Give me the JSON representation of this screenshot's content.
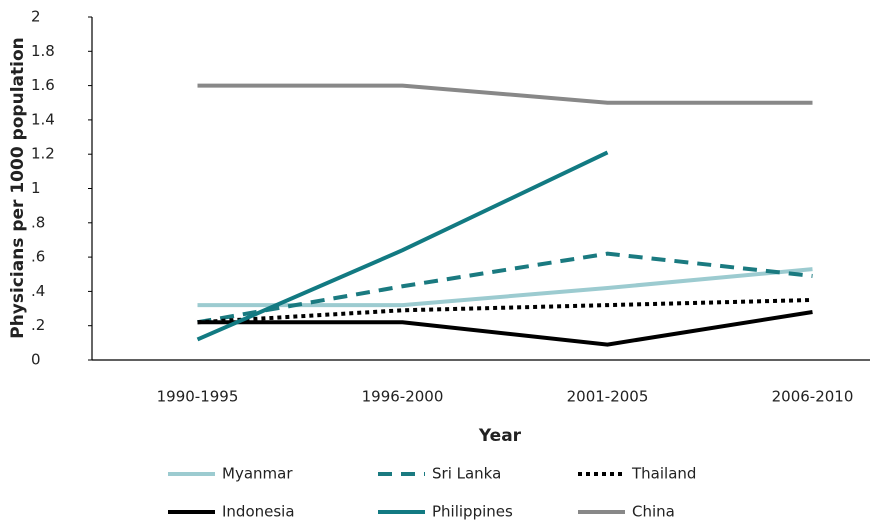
{
  "chart_data": {
    "type": "line",
    "y_label": "Physicians per 1000 population",
    "x_label": "Year",
    "categories": [
      "1990-1995",
      "1996-2000",
      "2001-2005",
      "2006-2010"
    ],
    "series": [
      {
        "name": "Myanmar",
        "color": "#9ccbd0",
        "dash": "solid",
        "values": [
          0.32,
          0.32,
          0.42,
          0.53
        ]
      },
      {
        "name": "Sri Lanka",
        "color": "#1a7a80",
        "dash": "dashed",
        "values": [
          0.22,
          0.43,
          0.62,
          0.49
        ]
      },
      {
        "name": "Thailand",
        "color": "#000000",
        "dash": "dotted",
        "values": [
          0.22,
          0.29,
          0.32,
          0.35
        ]
      },
      {
        "name": "Indonesia",
        "color": "#000000",
        "dash": "solid",
        "values": [
          0.22,
          0.22,
          0.09,
          0.28
        ]
      },
      {
        "name": "Philippines",
        "color": "#127a82",
        "dash": "solid",
        "values": [
          0.12,
          0.64,
          1.21,
          null
        ]
      },
      {
        "name": "China",
        "color": "#888888",
        "dash": "solid",
        "values": [
          1.6,
          1.6,
          1.5,
          1.5
        ]
      }
    ],
    "ylim": [
      0,
      2
    ],
    "yticks": [
      0,
      {
        "value": 0.2,
        "label": ".2"
      },
      {
        "value": 0.4,
        "label": ".4"
      },
      {
        "value": 0.6,
        "label": ".6"
      },
      {
        "value": 0.8,
        "label": ".8"
      },
      1,
      1.2,
      1.4,
      1.6,
      1.8,
      2
    ],
    "grid": false
  }
}
